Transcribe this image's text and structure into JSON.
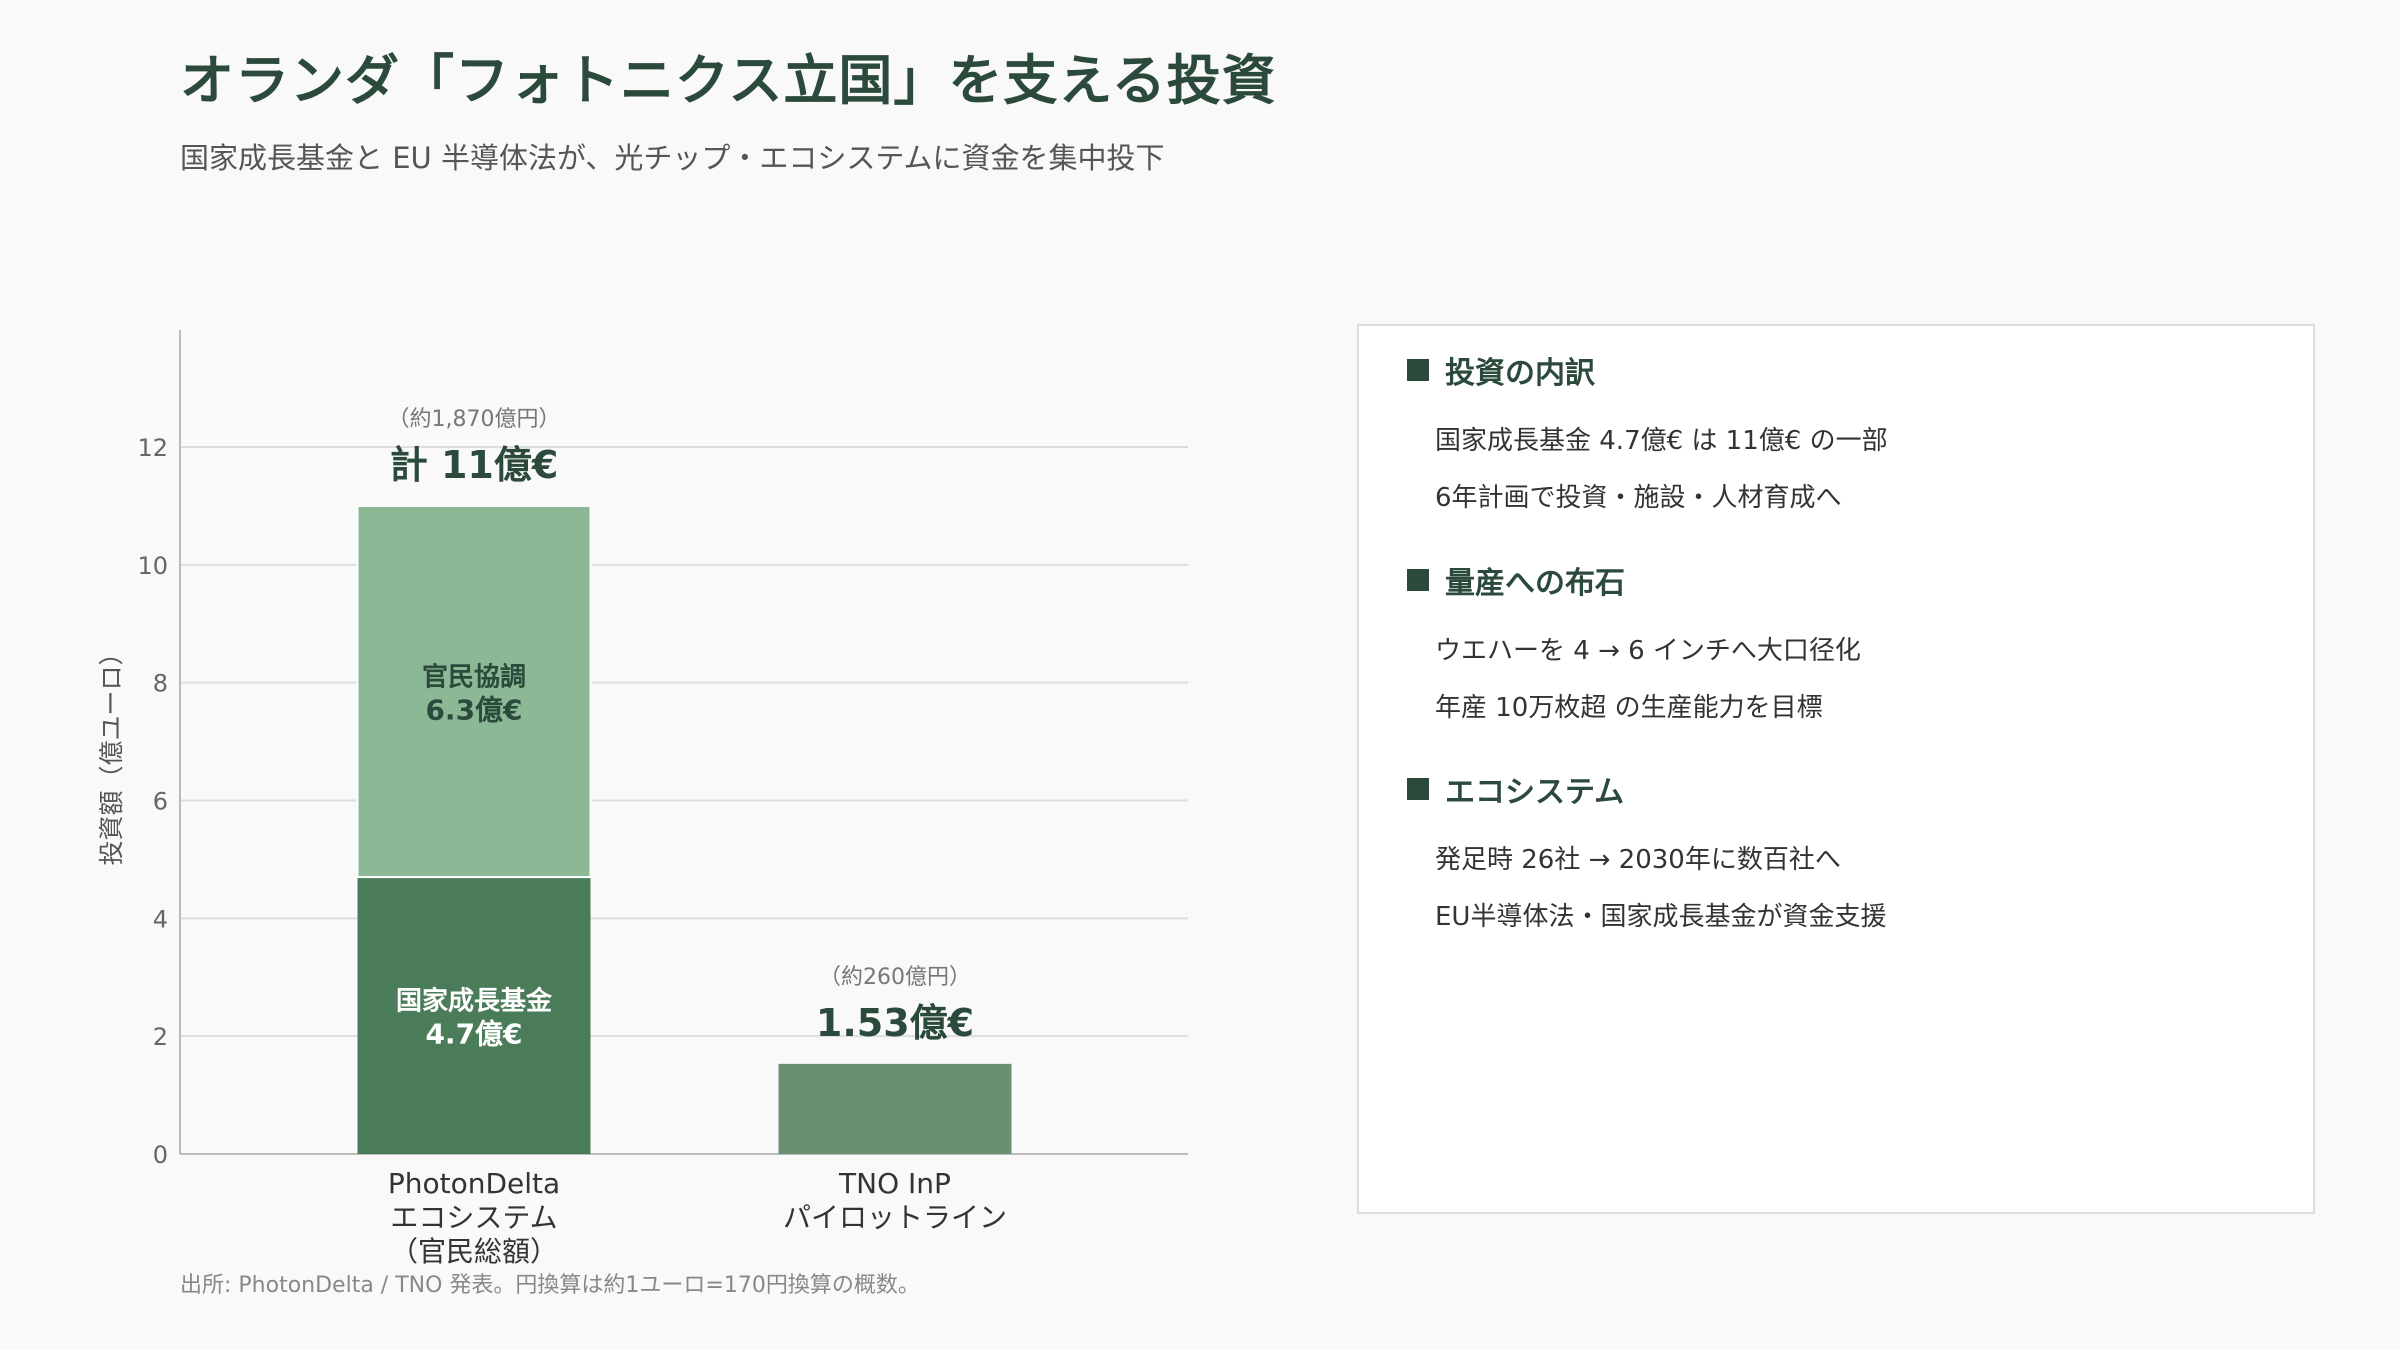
{
  "title": "オランダ「フォトニクス立国」を支える投資",
  "subtitle": "国家成長基金と EU 半導体法が、光チップ・エコシステムに資金を集中投下",
  "footnote": "出所: PhotonDelta / TNO 発表。円換算は約1ユーロ=170円換算の概数。",
  "colors": {
    "heading": "#2c4a3c",
    "national": "#4a7c59",
    "public_private": "#8db896",
    "tno": "#6b9070",
    "grid": "#dddddd"
  },
  "chart_data": {
    "type": "bar",
    "stacked": true,
    "ylabel": "投資額（億ユーロ）",
    "ylim": [
      0,
      14
    ],
    "yticks": [
      0,
      2,
      4,
      6,
      8,
      10,
      12
    ],
    "grid": true,
    "categories": [
      [
        "PhotonDelta",
        "エコシステム",
        "（官民総額）"
      ],
      [
        "TNO InP",
        "パイロットライン"
      ]
    ],
    "bars": [
      {
        "segments": [
          {
            "value": 4.7,
            "label_name": "国家成長基金",
            "label_value": "4.7億€",
            "color": "#4a7c59"
          },
          {
            "value": 6.3,
            "label_name": "官民協調",
            "label_value": "6.3億€",
            "color": "#8db896"
          }
        ],
        "total": 11,
        "total_label": "計 11億€",
        "note": "（約1,870億円）"
      },
      {
        "segments": [
          {
            "value": 1.53,
            "label_name": "",
            "label_value": "",
            "color": "#6b9070"
          }
        ],
        "total": 1.53,
        "total_label": "1.53億€",
        "note": "（約260億円）"
      }
    ]
  },
  "panel": {
    "sections": [
      {
        "heading": "投資の内訳",
        "lines": [
          "国家成長基金 4.7億€ は 11億€ の一部",
          "6年計画で投資・施設・人材育成へ"
        ]
      },
      {
        "heading": "量産への布石",
        "lines": [
          "ウエハーを 4 → 6 インチへ大口径化",
          "年産 10万枚超 の生産能力を目標"
        ]
      },
      {
        "heading": "エコシステム",
        "lines": [
          "発足時 26社 → 2030年に数百社へ",
          "EU半導体法・国家成長基金が資金支援"
        ]
      }
    ]
  }
}
